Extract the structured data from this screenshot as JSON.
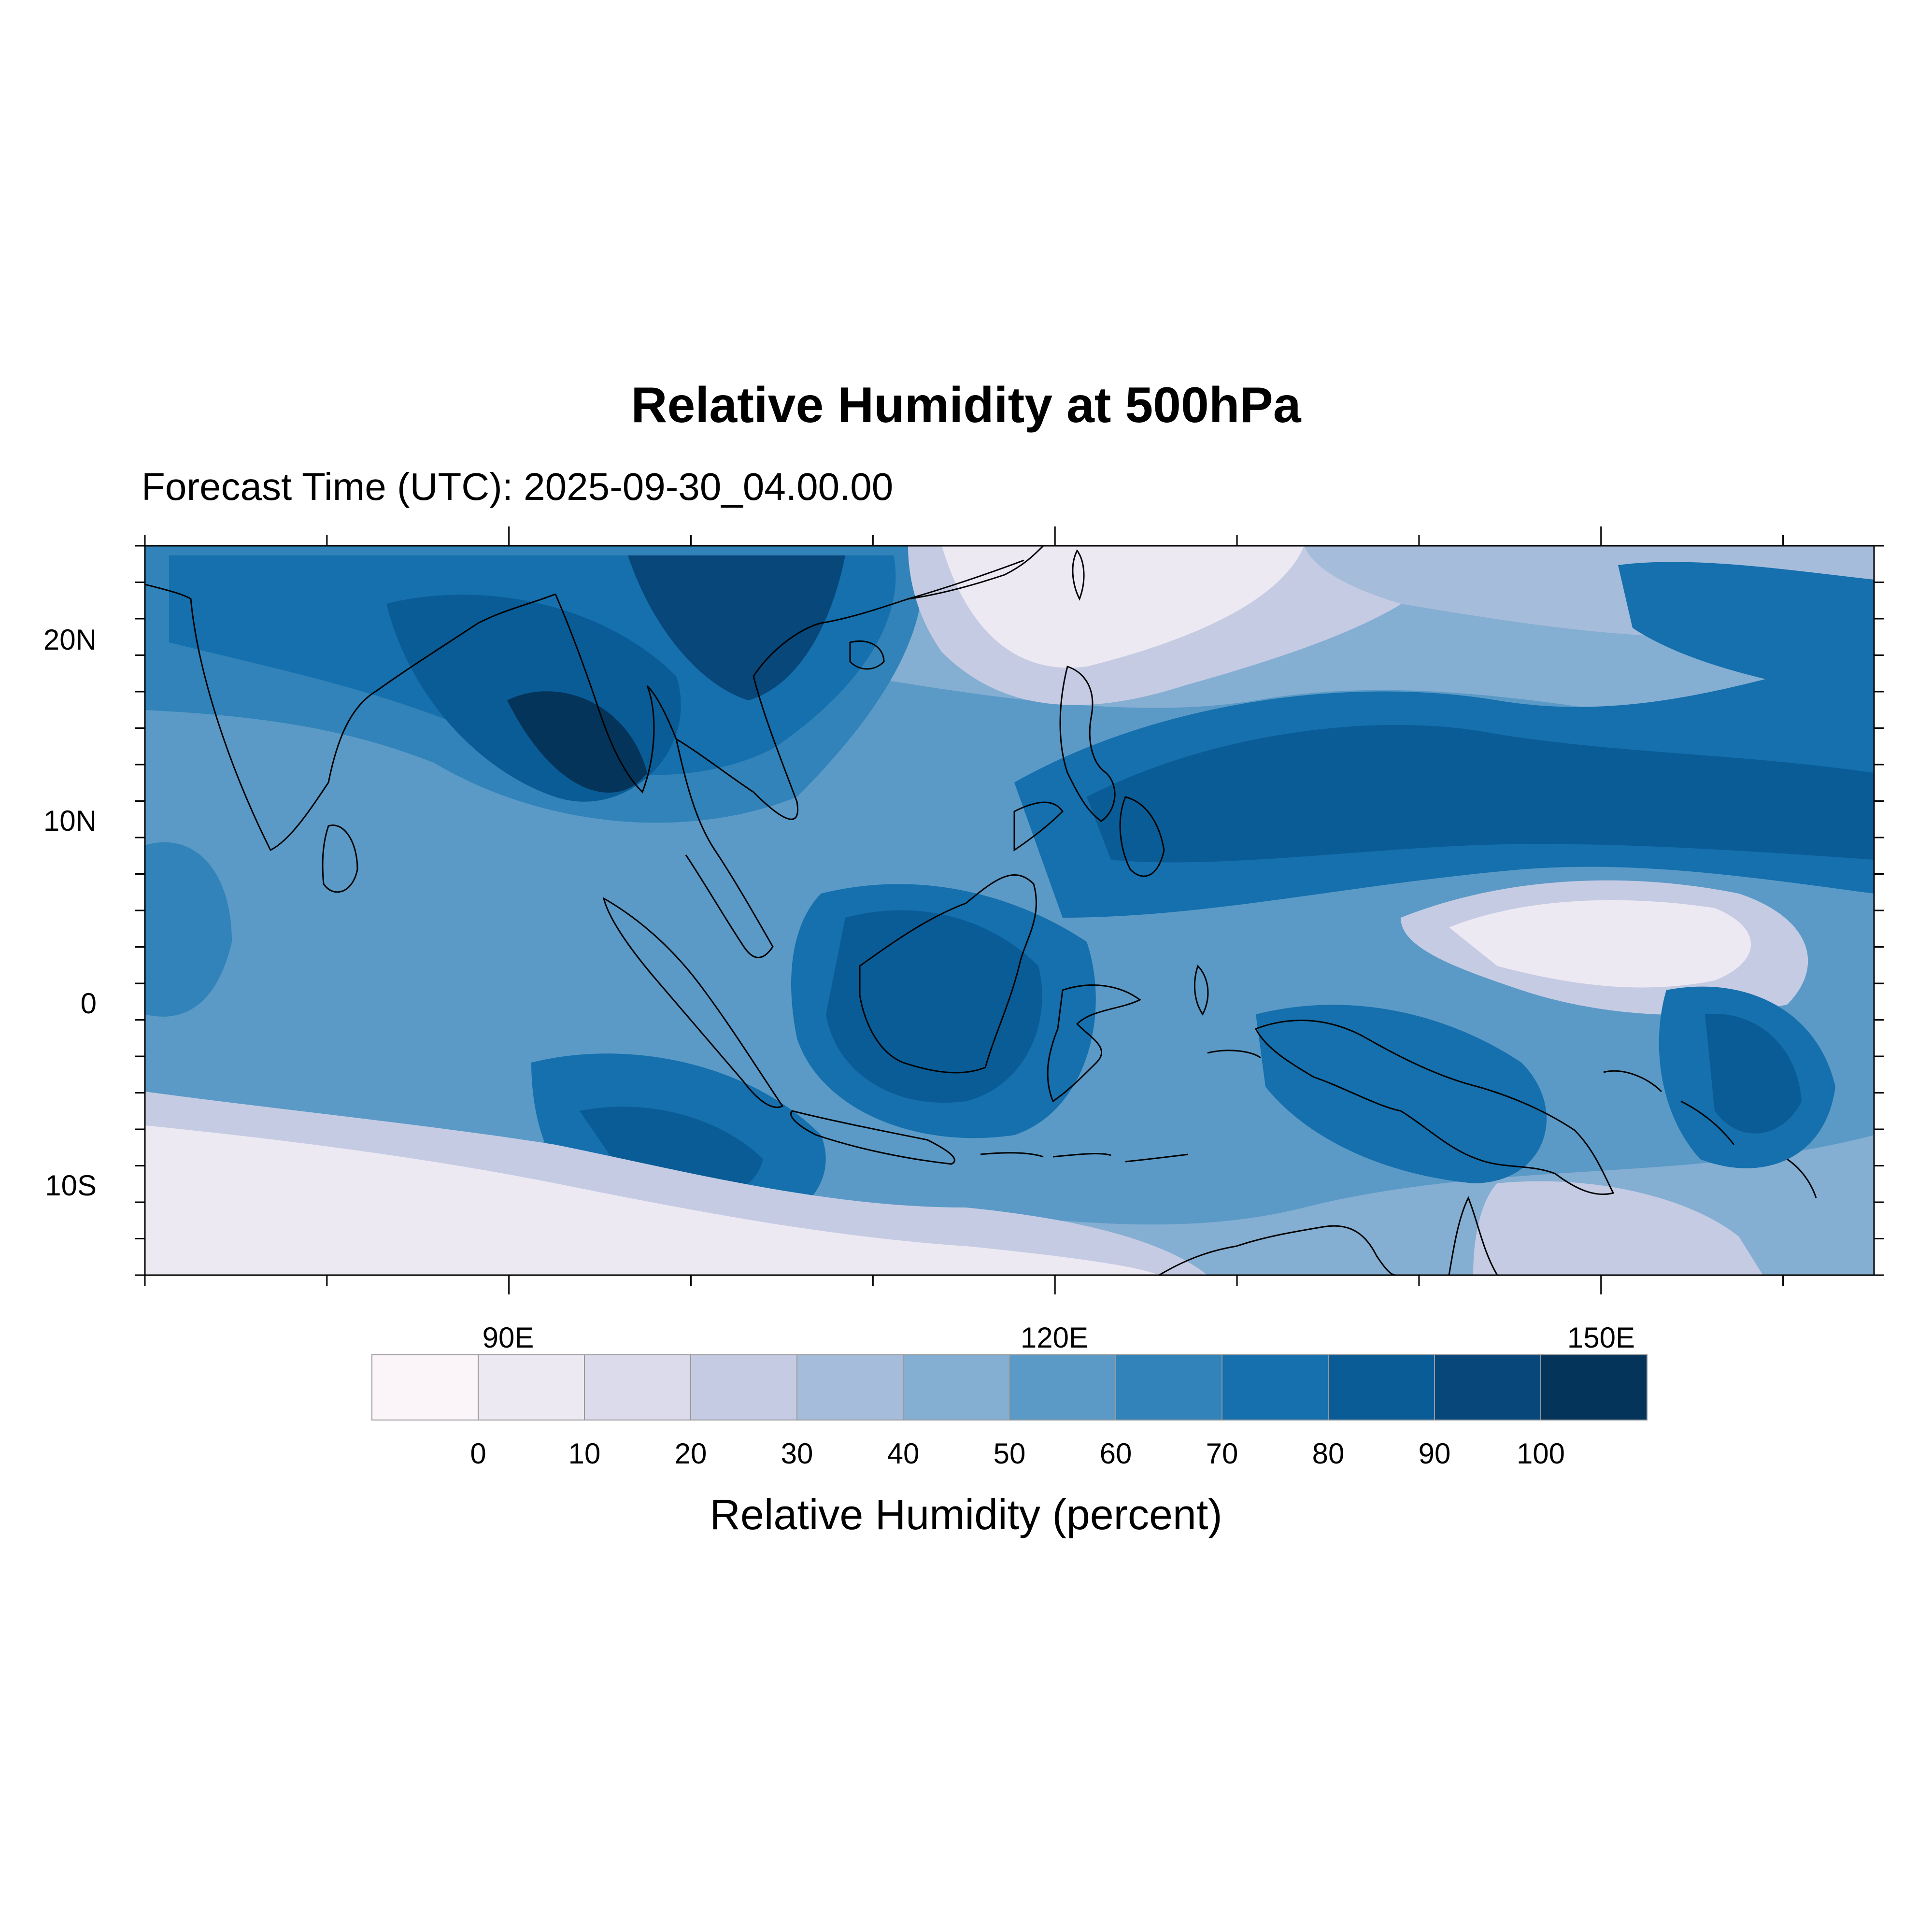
{
  "title": "Relative Humidity at 500hPa",
  "subtitle": "Forecast Time (UTC): 2025-09-30_04.00.00",
  "map": {
    "lat_labels": [
      "20N",
      "10N",
      "0",
      "10S"
    ],
    "lat_values": [
      20,
      10,
      0,
      -10
    ],
    "lon_labels": [
      "90E",
      "120E",
      "150E"
    ],
    "lon_values": [
      90,
      120,
      150
    ],
    "lon_range": [
      70,
      165
    ],
    "lat_range": [
      -15,
      25
    ]
  },
  "colorbar": {
    "title": "Relative Humidity (percent)",
    "labels": [
      "0",
      "10",
      "20",
      "30",
      "40",
      "50",
      "60",
      "70",
      "80",
      "90",
      "100"
    ],
    "colors": [
      "#fbf4f9",
      "#ede9f2",
      "#dcdbeb",
      "#c5cbe3",
      "#a6bcdb",
      "#84aed2",
      "#5b9ac7",
      "#3183b9",
      "#1570ad",
      "#0a5c96",
      "#07477a",
      "#04345a"
    ]
  }
}
